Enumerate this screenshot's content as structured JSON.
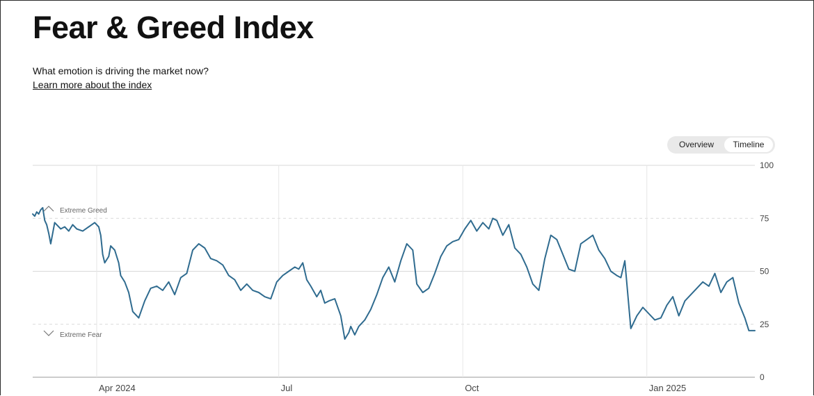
{
  "header": {
    "title": "Fear & Greed Index",
    "subtitle": "What emotion is driving the market now?",
    "learn_more": "Learn more about the index"
  },
  "view_toggle": {
    "options": [
      "Overview",
      "Timeline"
    ],
    "selected": "Timeline"
  },
  "annotations": {
    "extreme_greed": "Extreme Greed",
    "extreme_fear": "Extreme Fear"
  },
  "colors": {
    "line": "#2f6b8f",
    "grid": "#d9d9d9",
    "text": "#111111"
  },
  "chart_data": {
    "type": "line",
    "ylim": [
      0,
      100
    ],
    "y_ticks": [
      0,
      25,
      50,
      75,
      100
    ],
    "x_start": "2024-02-29",
    "x_end": "2025-02-24",
    "x_ticks": [
      {
        "date": "2024-04-01",
        "label": "Apr 2024"
      },
      {
        "date": "2024-07-01",
        "label": "Jul"
      },
      {
        "date": "2024-10-01",
        "label": "Oct"
      },
      {
        "date": "2025-01-01",
        "label": "Jan 2025"
      }
    ],
    "grid": true,
    "series": [
      {
        "dates": [
          "2024-02-29",
          "2024-03-01",
          "2024-03-02",
          "2024-03-03",
          "2024-03-04",
          "2024-03-05",
          "2024-03-06",
          "2024-03-07",
          "2024-03-08",
          "2024-03-09",
          "2024-03-11",
          "2024-03-12",
          "2024-03-14",
          "2024-03-16",
          "2024-03-18",
          "2024-03-20",
          "2024-03-22",
          "2024-03-25",
          "2024-03-28",
          "2024-03-31",
          "2024-04-02",
          "2024-04-03",
          "2024-04-04",
          "2024-04-05",
          "2024-04-07",
          "2024-04-08",
          "2024-04-10",
          "2024-04-12",
          "2024-04-13",
          "2024-04-15",
          "2024-04-17",
          "2024-04-19",
          "2024-04-22",
          "2024-04-25",
          "2024-04-28",
          "2024-05-01",
          "2024-05-04",
          "2024-05-07",
          "2024-05-10",
          "2024-05-13",
          "2024-05-16",
          "2024-05-19",
          "2024-05-22",
          "2024-05-25",
          "2024-05-28",
          "2024-05-31",
          "2024-06-03",
          "2024-06-06",
          "2024-06-09",
          "2024-06-12",
          "2024-06-15",
          "2024-06-18",
          "2024-06-21",
          "2024-06-24",
          "2024-06-27",
          "2024-06-30",
          "2024-07-03",
          "2024-07-06",
          "2024-07-09",
          "2024-07-11",
          "2024-07-13",
          "2024-07-15",
          "2024-07-17",
          "2024-07-20",
          "2024-07-22",
          "2024-07-24",
          "2024-07-26",
          "2024-07-29",
          "2024-08-01",
          "2024-08-03",
          "2024-08-05",
          "2024-08-06",
          "2024-08-08",
          "2024-08-10",
          "2024-08-13",
          "2024-08-16",
          "2024-08-19",
          "2024-08-22",
          "2024-08-25",
          "2024-08-28",
          "2024-08-31",
          "2024-09-03",
          "2024-09-06",
          "2024-09-08",
          "2024-09-11",
          "2024-09-14",
          "2024-09-17",
          "2024-09-20",
          "2024-09-23",
          "2024-09-26",
          "2024-09-29",
          "2024-10-02",
          "2024-10-05",
          "2024-10-08",
          "2024-10-11",
          "2024-10-14",
          "2024-10-16",
          "2024-10-18",
          "2024-10-21",
          "2024-10-24",
          "2024-10-27",
          "2024-10-30",
          "2024-11-02",
          "2024-11-05",
          "2024-11-08",
          "2024-11-11",
          "2024-11-14",
          "2024-11-17",
          "2024-11-20",
          "2024-11-23",
          "2024-11-26",
          "2024-11-29",
          "2024-12-02",
          "2024-12-05",
          "2024-12-08",
          "2024-12-11",
          "2024-12-14",
          "2024-12-17",
          "2024-12-19",
          "2024-12-21",
          "2024-12-24",
          "2024-12-27",
          "2024-12-30",
          "2025-01-02",
          "2025-01-05",
          "2025-01-08",
          "2025-01-11",
          "2025-01-14",
          "2025-01-17",
          "2025-01-20",
          "2025-01-23",
          "2025-01-26",
          "2025-01-29",
          "2025-02-01",
          "2025-02-04",
          "2025-02-07",
          "2025-02-10",
          "2025-02-13",
          "2025-02-16",
          "2025-02-19",
          "2025-02-21",
          "2025-02-24"
        ],
        "values": [
          77,
          76,
          78,
          77,
          79,
          80,
          74,
          72,
          68,
          63,
          73,
          72,
          70,
          71,
          69,
          72,
          70,
          69,
          71,
          73,
          71,
          67,
          58,
          54,
          57,
          62,
          60,
          54,
          48,
          45,
          40,
          31,
          28,
          36,
          42,
          43,
          41,
          45,
          39,
          47,
          49,
          60,
          63,
          61,
          56,
          55,
          53,
          48,
          46,
          41,
          44,
          41,
          40,
          38,
          37,
          45,
          48,
          50,
          52,
          51,
          54,
          46,
          43,
          38,
          41,
          35,
          36,
          37,
          29,
          18,
          21,
          24,
          20,
          24,
          27,
          32,
          39,
          47,
          52,
          45,
          55,
          63,
          60,
          44,
          40,
          42,
          49,
          57,
          62,
          64,
          65,
          70,
          74,
          69,
          73,
          70,
          75,
          74,
          67,
          72,
          61,
          58,
          52,
          44,
          41,
          56,
          67,
          65,
          58,
          51,
          50,
          63,
          65,
          67,
          60,
          56,
          50,
          48,
          47,
          55,
          23,
          29,
          33,
          30,
          27,
          28,
          34,
          38,
          29,
          36,
          39,
          42,
          45,
          43,
          49,
          40,
          45,
          47,
          35,
          28,
          22,
          22
        ]
      }
    ]
  }
}
